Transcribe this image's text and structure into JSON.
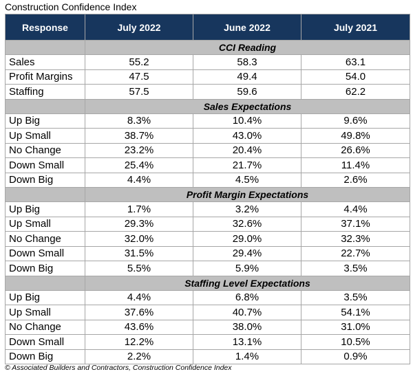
{
  "title": "Construction Confidence Index",
  "footer": "© Associated Builders and Contractors, Construction Confidence Index",
  "chart_data": {
    "type": "table",
    "columns": [
      "Response",
      "July 2022",
      "June 2022",
      "July 2021"
    ],
    "sections": [
      {
        "name": "CCI Reading",
        "rows": [
          {
            "label": "Sales",
            "values": [
              "55.2",
              "58.3",
              "63.1"
            ]
          },
          {
            "label": "Profit Margins",
            "values": [
              "47.5",
              "49.4",
              "54.0"
            ]
          },
          {
            "label": "Staffing",
            "values": [
              "57.5",
              "59.6",
              "62.2"
            ]
          }
        ]
      },
      {
        "name": "Sales Expectations",
        "rows": [
          {
            "label": "Up Big",
            "values": [
              "8.3%",
              "10.4%",
              "9.6%"
            ]
          },
          {
            "label": "Up Small",
            "values": [
              "38.7%",
              "43.0%",
              "49.8%"
            ]
          },
          {
            "label": "No Change",
            "values": [
              "23.2%",
              "20.4%",
              "26.6%"
            ]
          },
          {
            "label": "Down Small",
            "values": [
              "25.4%",
              "21.7%",
              "11.4%"
            ]
          },
          {
            "label": "Down Big",
            "values": [
              "4.4%",
              "4.5%",
              "2.6%"
            ]
          }
        ]
      },
      {
        "name": "Profit Margin Expectations",
        "rows": [
          {
            "label": "Up Big",
            "values": [
              "1.7%",
              "3.2%",
              "4.4%"
            ]
          },
          {
            "label": "Up Small",
            "values": [
              "29.3%",
              "32.6%",
              "37.1%"
            ]
          },
          {
            "label": "No Change",
            "values": [
              "32.0%",
              "29.0%",
              "32.3%"
            ]
          },
          {
            "label": "Down Small",
            "values": [
              "31.5%",
              "29.4%",
              "22.7%"
            ]
          },
          {
            "label": "Down Big",
            "values": [
              "5.5%",
              "5.9%",
              "3.5%"
            ]
          }
        ]
      },
      {
        "name": "Staffing Level Expectations",
        "rows": [
          {
            "label": "Up Big",
            "values": [
              "4.4%",
              "6.8%",
              "3.5%"
            ]
          },
          {
            "label": "Up Small",
            "values": [
              "37.6%",
              "40.7%",
              "54.1%"
            ]
          },
          {
            "label": "No Change",
            "values": [
              "43.6%",
              "38.0%",
              "31.0%"
            ]
          },
          {
            "label": "Down Small",
            "values": [
              "12.2%",
              "13.1%",
              "10.5%"
            ]
          },
          {
            "label": "Down Big",
            "values": [
              "2.2%",
              "1.4%",
              "0.9%"
            ]
          }
        ]
      }
    ],
    "colors": {
      "header_bg": "#17365d",
      "header_text": "#ffffff",
      "section_bg": "#bfbfbf",
      "grid": "#a6a6a6"
    }
  }
}
